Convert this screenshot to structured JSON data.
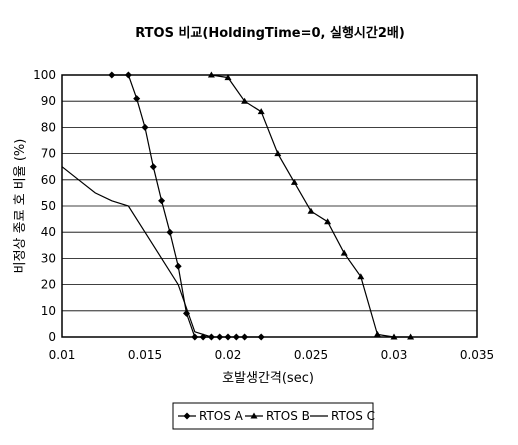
{
  "chart_data": {
    "type": "line",
    "title": "RTOS 비교(HoldingTime=0, 실행시간2배)",
    "xlabel": "호발생간격(sec)",
    "ylabel": "비정상 종료 호 비율 (%)",
    "xlim": [
      0.01,
      0.035
    ],
    "ylim": [
      0,
      100
    ],
    "x_ticks": [
      "0.01",
      "0.015",
      "0.02",
      "0.025",
      "0.03",
      "0.035"
    ],
    "y_ticks": [
      "0",
      "10",
      "20",
      "30",
      "40",
      "50",
      "60",
      "70",
      "80",
      "90",
      "100"
    ],
    "grid": "horizontal",
    "legend_position": "bottom",
    "series": [
      {
        "name": "RTOS A",
        "marker": "diamond",
        "x": [
          0.013,
          0.014,
          0.0145,
          0.015,
          0.0155,
          0.016,
          0.0165,
          0.017,
          0.0175,
          0.018,
          0.0185,
          0.019,
          0.0195,
          0.02,
          0.0205,
          0.021,
          0.022
        ],
        "y": [
          100,
          100,
          91,
          80,
          65,
          52,
          40,
          27,
          9,
          0,
          0,
          0,
          0,
          0,
          0,
          0,
          0
        ]
      },
      {
        "name": "RTOS B",
        "marker": "triangle",
        "x": [
          0.019,
          0.02,
          0.021,
          0.022,
          0.023,
          0.024,
          0.025,
          0.026,
          0.027,
          0.028,
          0.029,
          0.03,
          0.031
        ],
        "y": [
          100,
          99,
          90,
          86,
          70,
          59,
          48,
          44,
          32,
          23,
          1,
          0,
          0
        ]
      },
      {
        "name": "RTOS C",
        "marker": "none",
        "x": [
          0.01,
          0.011,
          0.012,
          0.013,
          0.014,
          0.015,
          0.016,
          0.017,
          0.018,
          0.019
        ],
        "y": [
          65,
          60,
          55,
          52,
          50,
          40,
          30,
          20,
          2,
          0
        ]
      }
    ]
  }
}
